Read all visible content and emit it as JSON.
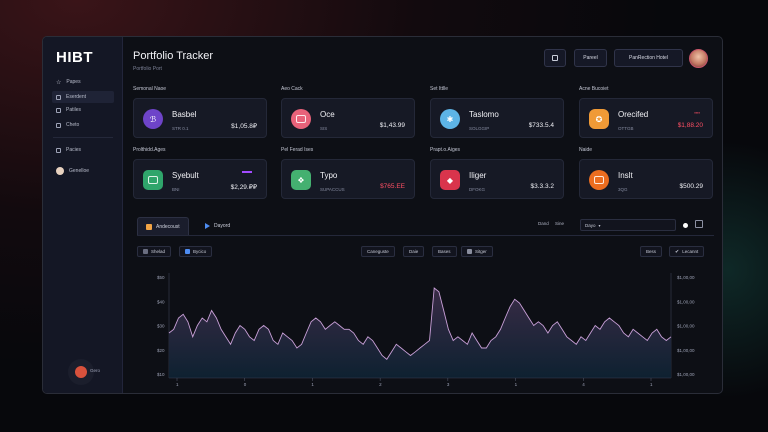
{
  "app": {
    "logo": "HIBT",
    "title": "Portfolio Tracker",
    "subtitle": "Portfolio Port",
    "header_buttons": {
      "icon_button": "square-icon",
      "button1": "Pareel",
      "button2": "PanRection Hotel"
    }
  },
  "sidebar": {
    "items": [
      {
        "label": "Papes",
        "icon": "star-icon"
      },
      {
        "label": "Eserdent",
        "icon": "folder-icon"
      },
      {
        "label": "Patiles",
        "icon": "file-icon"
      },
      {
        "label": "Cheto",
        "icon": "grid-icon"
      }
    ],
    "secondary": [
      {
        "label": "Pacies",
        "icon": "note-icon"
      },
      {
        "label": "Genelloe",
        "icon": "user-icon"
      }
    ],
    "bottom_label": "Gero"
  },
  "sections": [
    {
      "label": "Semonal Naoe"
    },
    {
      "label": "Aeo Cack"
    },
    {
      "label": "Set Ittlle"
    },
    {
      "label": "Acne Bucoiet"
    },
    {
      "label": "Prolthidd.Ages"
    },
    {
      "label": "Pel Ferad Ises"
    },
    {
      "label": "Prapt.o.Aiges"
    },
    {
      "label": "Naide"
    }
  ],
  "cards": [
    {
      "name": "Basbel",
      "sym": "STR 0.1",
      "value": "$1,05.8₽",
      "color": "#6e44c9",
      "negative": false,
      "change": ""
    },
    {
      "name": "Oce",
      "sym": "SIS",
      "value": "$1,43.99",
      "color": "#e8627a",
      "negative": false,
      "change": ""
    },
    {
      "name": "Taslomo",
      "sym": "SOLGGIP",
      "value": "$733.5.4",
      "color": "#5db4e6",
      "negative": false,
      "change": ""
    },
    {
      "name": "Orecifed",
      "sym": "OTTGB",
      "value": "$1,88.20",
      "color": "#f09a36",
      "negative": true,
      "change": "▪▪▪▪"
    },
    {
      "name": "Syebult",
      "sym": "BNI",
      "value": "$2,29.₽₽",
      "color": "#2fa56b",
      "negative": false,
      "change": ""
    },
    {
      "name": "Typo",
      "sym": "SUPACCUS",
      "value": "$765.EE",
      "color": "#44b070",
      "negative": true,
      "change": ""
    },
    {
      "name": "Iliger",
      "sym": "DFOKG",
      "value": "$3.3.3.2",
      "color": "#d9344c",
      "negative": false,
      "change": ""
    },
    {
      "name": "Inslt",
      "sym": "3QG",
      "value": "$500.29",
      "color": "#ec6d20",
      "negative": false,
      "change": ""
    }
  ],
  "tabs": [
    {
      "label": "Andecoust",
      "icon": "tag-icon",
      "active": true
    },
    {
      "label": "Dayord",
      "icon": "play-icon",
      "active": false
    }
  ],
  "filters": {
    "label1": "Dand",
    "label2": "Sine",
    "select": "Dayo",
    "chips": [
      "Shelad",
      "Bycico",
      "Caneguste",
      "Daie",
      "Bases",
      "Sitger",
      "Bess",
      "Lecannt"
    ]
  },
  "chart_data": {
    "type": "area",
    "y_left_ticks": [
      "$10",
      "$20",
      "$30",
      "$40",
      "$50"
    ],
    "y_right_ticks": [
      "$1,00,00",
      "$1,00,00",
      "$1,00,00",
      "$1,00,00",
      "$1,00,00"
    ],
    "x_ticks": [
      "1",
      "0",
      "1",
      "2",
      "3",
      "1",
      "4",
      "1"
    ],
    "colors": {
      "line": "#c9a0d8",
      "fill_top": "#3c2d49",
      "fill_bottom": "#0e2232"
    },
    "values": [
      32,
      33,
      36,
      37,
      35,
      31,
      34,
      36,
      35,
      38,
      36,
      33,
      31,
      29,
      32,
      34,
      33,
      31,
      30,
      33,
      34,
      33,
      30,
      29,
      32,
      31,
      30,
      28,
      29,
      32,
      35,
      36,
      35,
      33,
      34,
      35,
      34,
      33,
      33,
      32,
      30,
      29,
      31,
      30,
      28,
      26,
      25,
      27,
      29,
      28,
      27,
      26,
      27,
      28,
      29,
      30,
      44,
      43,
      38,
      33,
      30,
      31,
      30,
      29,
      32,
      30,
      28,
      28,
      30,
      31,
      33,
      36,
      39,
      41,
      40,
      38,
      36,
      34,
      35,
      34,
      32,
      34,
      35,
      33,
      31,
      30,
      29,
      31,
      30,
      32,
      34,
      33,
      35,
      36,
      35,
      34,
      32,
      31,
      33,
      32,
      31,
      30,
      32,
      33,
      31,
      30,
      31
    ]
  }
}
